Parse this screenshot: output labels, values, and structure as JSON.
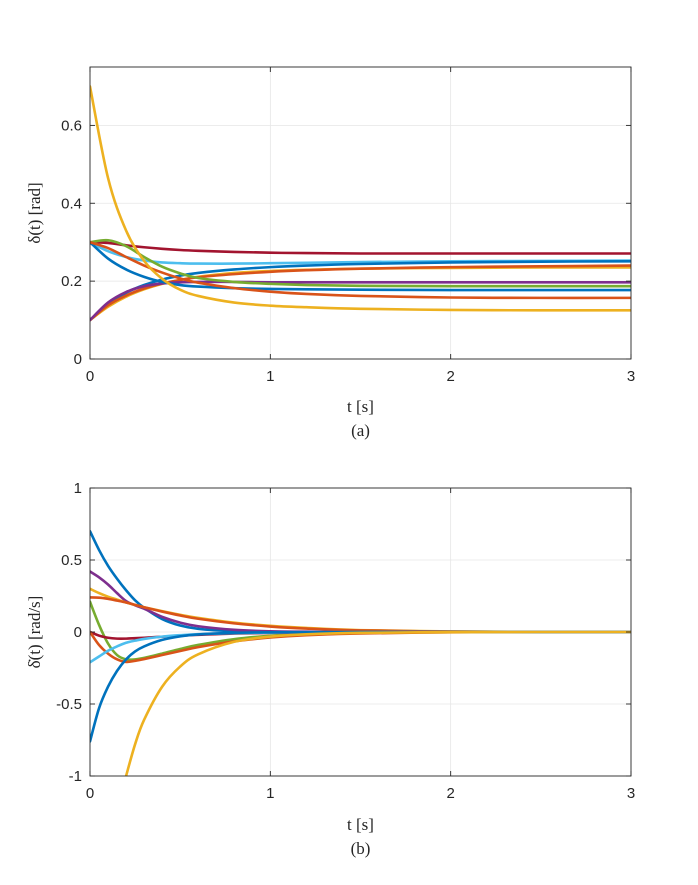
{
  "chart_data": [
    {
      "type": "line",
      "caption": "(a)",
      "xlabel": "t [s]",
      "ylabel": "δ(t) [rad]",
      "xlim": [
        0,
        3
      ],
      "ylim": [
        0,
        0.75
      ],
      "xticks": [
        0,
        1,
        2,
        3
      ],
      "xtick_labels": [
        "0",
        "1",
        "2",
        "3"
      ],
      "yticks": [
        0,
        0.2,
        0.4,
        0.6
      ],
      "ytick_labels": [
        "0",
        "0.2",
        "0.4",
        "0.6"
      ],
      "grid": true,
      "legend": "none",
      "x": [
        0,
        0.1,
        0.2,
        0.3,
        0.4,
        0.5,
        0.6,
        0.8,
        1.0,
        1.2,
        1.5,
        2.0,
        2.5,
        3.0
      ],
      "series": [
        {
          "color": "#A2142F",
          "values": [
            0.3,
            0.298,
            0.292,
            0.287,
            0.283,
            0.28,
            0.278,
            0.275,
            0.273,
            0.272,
            0.271,
            0.271,
            0.271,
            0.271
          ]
        },
        {
          "color": "#4DBEEE",
          "values": [
            0.3,
            0.277,
            0.262,
            0.253,
            0.248,
            0.246,
            0.245,
            0.245,
            0.246,
            0.247,
            0.249,
            0.251,
            0.252,
            0.253
          ]
        },
        {
          "color": "#0072BD",
          "values": [
            0.1,
            0.14,
            0.17,
            0.19,
            0.204,
            0.214,
            0.221,
            0.23,
            0.236,
            0.24,
            0.244,
            0.248,
            0.25,
            0.251
          ]
        },
        {
          "color": "#EDB120",
          "values": [
            0.1,
            0.134,
            0.16,
            0.179,
            0.193,
            0.203,
            0.211,
            0.221,
            0.226,
            0.229,
            0.232,
            0.234,
            0.235,
            0.235
          ]
        },
        {
          "color": "#D95319",
          "values": [
            0.1,
            0.138,
            0.163,
            0.181,
            0.194,
            0.203,
            0.21,
            0.218,
            0.224,
            0.228,
            0.232,
            0.236,
            0.238,
            0.24
          ]
        },
        {
          "color": "#7E2F8E",
          "values": [
            0.1,
            0.145,
            0.172,
            0.187,
            0.194,
            0.197,
            0.198,
            0.198,
            0.197,
            0.197,
            0.197,
            0.197,
            0.197,
            0.197
          ]
        },
        {
          "color": "#77AC30",
          "values": [
            0.3,
            0.305,
            0.29,
            0.262,
            0.237,
            0.22,
            0.208,
            0.198,
            0.193,
            0.19,
            0.188,
            0.187,
            0.187,
            0.187
          ]
        },
        {
          "color": "#0072BD",
          "values": [
            0.3,
            0.258,
            0.23,
            0.211,
            0.198,
            0.19,
            0.186,
            0.182,
            0.18,
            0.179,
            0.178,
            0.177,
            0.177,
            0.177
          ]
        },
        {
          "color": "#D95319",
          "values": [
            0.3,
            0.285,
            0.262,
            0.24,
            0.222,
            0.207,
            0.196,
            0.182,
            0.173,
            0.167,
            0.162,
            0.158,
            0.157,
            0.157
          ]
        },
        {
          "color": "#EDB120",
          "values": [
            0.7,
            0.465,
            0.33,
            0.252,
            0.206,
            0.178,
            0.162,
            0.145,
            0.137,
            0.133,
            0.129,
            0.126,
            0.125,
            0.125
          ]
        }
      ]
    },
    {
      "type": "line",
      "caption": "(b)",
      "xlabel": "t [s]",
      "ylabel": "δ̇(t) [rad/s]",
      "xlim": [
        0,
        3
      ],
      "ylim": [
        -1,
        1
      ],
      "xticks": [
        0,
        1,
        2,
        3
      ],
      "xtick_labels": [
        "0",
        "1",
        "2",
        "3"
      ],
      "yticks": [
        -1,
        -0.5,
        0,
        0.5,
        1
      ],
      "ytick_labels": [
        "-1",
        "-0.5",
        "0",
        "0.5",
        "1"
      ],
      "grid": true,
      "legend": "none",
      "x": [
        0,
        0.05,
        0.1,
        0.15,
        0.2,
        0.25,
        0.3,
        0.4,
        0.5,
        0.6,
        0.8,
        1.0,
        1.2,
        1.5,
        2.0,
        2.5,
        3.0
      ],
      "series": [
        {
          "color": "#0072BD",
          "values": [
            0.7,
            0.57,
            0.46,
            0.37,
            0.29,
            0.22,
            0.168,
            0.09,
            0.045,
            0.022,
            0.005,
            0.0,
            0.0,
            0.0,
            0.0,
            0.0,
            0.0
          ]
        },
        {
          "color": "#7E2F8E",
          "values": [
            0.42,
            0.38,
            0.33,
            0.27,
            0.215,
            0.185,
            0.162,
            0.105,
            0.065,
            0.04,
            0.015,
            0.005,
            0.002,
            0.0,
            0.0,
            0.0,
            0.0
          ]
        },
        {
          "color": "#EDB120",
          "values": [
            0.3,
            0.27,
            0.245,
            0.225,
            0.205,
            0.188,
            0.172,
            0.145,
            0.12,
            0.098,
            0.065,
            0.043,
            0.028,
            0.013,
            0.004,
            0.001,
            0.0
          ]
        },
        {
          "color": "#D95319",
          "values": [
            0.24,
            0.238,
            0.23,
            0.218,
            0.205,
            0.188,
            0.172,
            0.142,
            0.115,
            0.092,
            0.06,
            0.038,
            0.024,
            0.011,
            0.003,
            0.001,
            0.0
          ]
        },
        {
          "color": "#77AC30",
          "values": [
            0.21,
            0.05,
            -0.08,
            -0.16,
            -0.19,
            -0.19,
            -0.18,
            -0.15,
            -0.118,
            -0.09,
            -0.05,
            -0.026,
            -0.013,
            -0.005,
            -0.001,
            0.0,
            0.0
          ]
        },
        {
          "color": "#A2142F",
          "values": [
            0.0,
            -0.025,
            -0.04,
            -0.046,
            -0.046,
            -0.043,
            -0.04,
            -0.033,
            -0.026,
            -0.02,
            -0.011,
            -0.006,
            -0.003,
            -0.001,
            0.0,
            0.0,
            0.0
          ]
        },
        {
          "color": "#D95319",
          "values": [
            0.0,
            -0.09,
            -0.15,
            -0.19,
            -0.208,
            -0.2,
            -0.188,
            -0.16,
            -0.132,
            -0.105,
            -0.065,
            -0.038,
            -0.022,
            -0.01,
            -0.002,
            0.0,
            0.0
          ]
        },
        {
          "color": "#4DBEEE",
          "values": [
            -0.21,
            -0.17,
            -0.13,
            -0.1,
            -0.075,
            -0.06,
            -0.048,
            -0.032,
            -0.022,
            -0.015,
            -0.008,
            -0.004,
            -0.002,
            -0.001,
            0.0,
            0.0,
            0.0
          ]
        },
        {
          "color": "#0072BD",
          "values": [
            -0.76,
            -0.53,
            -0.38,
            -0.27,
            -0.19,
            -0.135,
            -0.1,
            -0.055,
            -0.03,
            -0.017,
            -0.006,
            -0.002,
            -0.001,
            0.0,
            0.0,
            0.0,
            0.0
          ]
        },
        {
          "color": "#EDB120",
          "values": [
            null,
            null,
            null,
            null,
            -1.0,
            -0.78,
            -0.61,
            -0.38,
            -0.24,
            -0.155,
            -0.068,
            -0.032,
            -0.016,
            -0.006,
            -0.001,
            0.0,
            0.0
          ]
        }
      ]
    }
  ]
}
